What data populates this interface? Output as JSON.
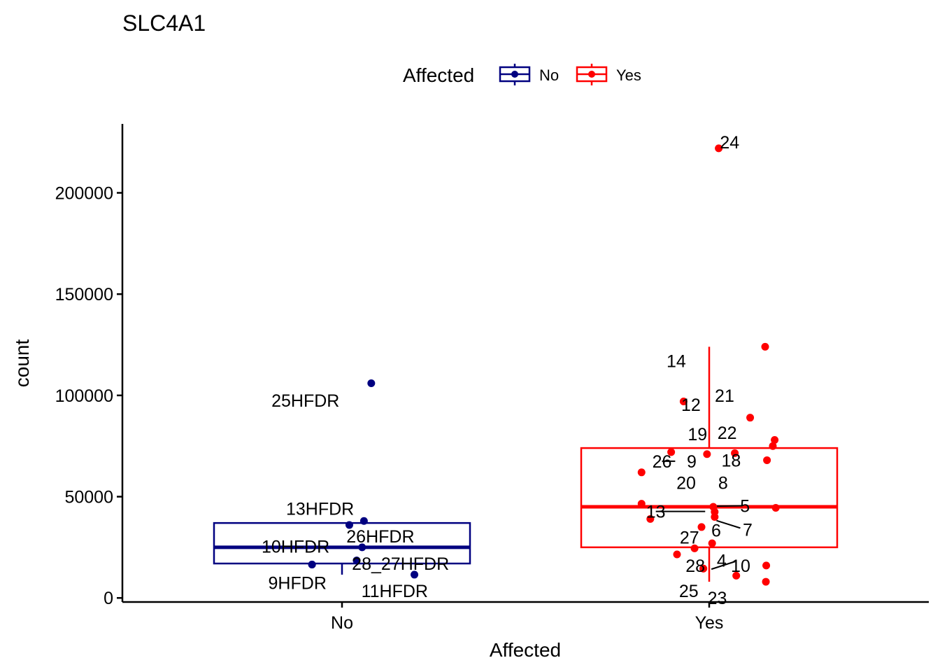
{
  "chart_data": {
    "type": "boxplot",
    "title": "SLC4A1",
    "xlabel": "Affected",
    "ylabel": "count",
    "categories": [
      "No",
      "Yes"
    ],
    "ylim": [
      -2000,
      233000
    ],
    "yticks": [
      0,
      50000,
      100000,
      150000,
      200000
    ],
    "ytick_labels": [
      "0",
      "50000",
      "100000",
      "150000",
      "200000"
    ],
    "legend": {
      "title": "Affected",
      "position": "top",
      "entries": [
        {
          "label": "No",
          "color": "#000080"
        },
        {
          "label": "Yes",
          "color": "#ff0000"
        }
      ]
    },
    "colors": {
      "No": "#000080",
      "Yes": "#ff0000",
      "leader": "#000000"
    },
    "boxes": [
      {
        "group": "No",
        "q1": 17000,
        "median": 25000,
        "q3": 37000,
        "whisker_low": 11500,
        "whisker_high": 37000
      },
      {
        "group": "Yes",
        "q1": 25000,
        "median": 45000,
        "q3": 74000,
        "whisker_low": 8000,
        "whisker_high": 124000
      }
    ],
    "points": [
      {
        "group": "No",
        "jitter": 0.08,
        "y": 106000,
        "label": "25HFDR",
        "label_dx": -0.18,
        "label_dy": -8500
      },
      {
        "group": "No",
        "jitter": 0.06,
        "y": 38000,
        "label": "13HFDR",
        "label_dx": -0.12,
        "label_dy": 6200
      },
      {
        "group": "No",
        "jitter": 0.02,
        "y": 36000,
        "label": null
      },
      {
        "group": "No",
        "jitter": 0.055,
        "y": 25000,
        "label": "26HFDR",
        "label_dx": 0.05,
        "label_dy": 5500
      },
      {
        "group": "No",
        "jitter": -0.082,
        "y": 16500,
        "label": "10HFDR",
        "label_dx": -0.045,
        "label_dy": 9000
      },
      {
        "group": "No",
        "jitter": 0.04,
        "y": 18500,
        "label": "28_27HFDR",
        "label_dx": 0.12,
        "label_dy": -1500
      },
      {
        "group": "No",
        "jitter": -0.082,
        "y": 16500,
        "label": "9HFDR",
        "label_dx": -0.04,
        "label_dy": -9000
      },
      {
        "group": "No",
        "jitter": 0.198,
        "y": 11500,
        "label": "11HFDR",
        "label_dx": -0.054,
        "label_dy": -8000
      },
      {
        "group": "Yes",
        "jitter": 0.026,
        "y": 222000,
        "label": "24",
        "label_dx": 0.03,
        "label_dy": 3000
      },
      {
        "group": "Yes",
        "jitter": 0.153,
        "y": 124000,
        "label": "14",
        "label_dx": -0.243,
        "label_dy": -7000
      },
      {
        "group": "Yes",
        "jitter": -0.07,
        "y": 97000,
        "label": "12",
        "label_dx": 0.02,
        "label_dy": -1500
      },
      {
        "group": "Yes",
        "jitter": 0.112,
        "y": 89000,
        "label": "21",
        "label_dx": -0.07,
        "label_dy": 11000
      },
      {
        "group": "Yes",
        "jitter": 0.179,
        "y": 78000,
        "label": "22",
        "label_dx": -0.13,
        "label_dy": 3700
      },
      {
        "group": "Yes",
        "jitter": 0.174,
        "y": 75000,
        "label": null
      },
      {
        "group": "Yes",
        "jitter": -0.104,
        "y": 72000,
        "label": "19",
        "label_dx": 0.072,
        "label_dy": 9000
      },
      {
        "group": "Yes",
        "jitter": 0.07,
        "y": 71500,
        "label": "18",
        "label_dx": -0.01,
        "label_dy": -3500
      },
      {
        "group": "Yes",
        "jitter": 0.158,
        "y": 68000,
        "label": null
      },
      {
        "group": "Yes",
        "jitter": -0.185,
        "y": 62000,
        "label": "26",
        "label_dx": 0.056,
        "label_dy": 5500,
        "leader_to_dx": 0.092,
        "leader_to_dy": 5500
      },
      {
        "group": "Yes",
        "jitter": -0.006,
        "y": 71000,
        "label": "9",
        "label_dx": -0.042,
        "label_dy": -3500,
        "leader_from_dx": -0.084,
        "leader_from_dy": -3000
      },
      {
        "group": "Yes",
        "jitter": -0.185,
        "y": 46500,
        "label": "20",
        "label_dx": 0.122,
        "label_dy": 10500
      },
      {
        "group": "Yes",
        "jitter": 0.011,
        "y": 45000,
        "label": "8",
        "label_dx": 0.027,
        "label_dy": 12000
      },
      {
        "group": "Yes",
        "jitter": 0.182,
        "y": 44500,
        "label": null
      },
      {
        "group": "Yes",
        "jitter": 0.015,
        "y": 42500,
        "label": "5",
        "label_dx": 0.083,
        "label_dy": 3000,
        "leader_from_dx": 0.0,
        "leader_from_dy": 2800,
        "leader_to_dx": 0.075,
        "leader_to_dy": 3000
      },
      {
        "group": "Yes",
        "jitter": -0.161,
        "y": 39000,
        "label": "13",
        "label_dx": 0.015,
        "label_dy": 3700,
        "leader_to_dx": 0.15,
        "leader_to_dy": 3700
      },
      {
        "group": "Yes",
        "jitter": -0.021,
        "y": 35000,
        "label": "6",
        "label_dx": 0.04,
        "label_dy": -1500
      },
      {
        "group": "Yes",
        "jitter": 0.015,
        "y": 40000,
        "label": "7",
        "label_dx": 0.09,
        "label_dy": -6200,
        "leader_from_dx": 0.005,
        "leader_from_dy": -1800,
        "leader_to_dx": 0.07,
        "leader_to_dy": -5500
      },
      {
        "group": "Yes",
        "jitter": 0.008,
        "y": 27000,
        "label": "27",
        "label_dx": -0.062,
        "label_dy": 3000
      },
      {
        "group": "Yes",
        "jitter": -0.04,
        "y": 24500,
        "label": null
      },
      {
        "group": "Yes",
        "jitter": -0.088,
        "y": 21500,
        "label": "28",
        "label_dx": 0.05,
        "label_dy": -5500
      },
      {
        "group": "Yes",
        "jitter": -0.016,
        "y": 14500,
        "label": "4",
        "label_dx": 0.05,
        "label_dy": 4000
      },
      {
        "group": "Yes",
        "jitter": 0.156,
        "y": 16000,
        "label": "10",
        "label_dx": -0.07,
        "label_dy": 0,
        "leader_from_dx": -0.15,
        "leader_from_dy": -1800,
        "leader_to_dx": -0.085,
        "leader_to_dy": 2000
      },
      {
        "group": "Yes",
        "jitter": 0.074,
        "y": 11000,
        "label": "23",
        "label_dx": -0.052,
        "label_dy": -11000
      },
      {
        "group": "Yes",
        "jitter": 0.155,
        "y": 8000,
        "label": null
      },
      {
        "group": "Yes",
        "jitter": -0.016,
        "y": 14500,
        "label": "25",
        "label_dx": -0.04,
        "label_dy": -11000
      }
    ]
  }
}
